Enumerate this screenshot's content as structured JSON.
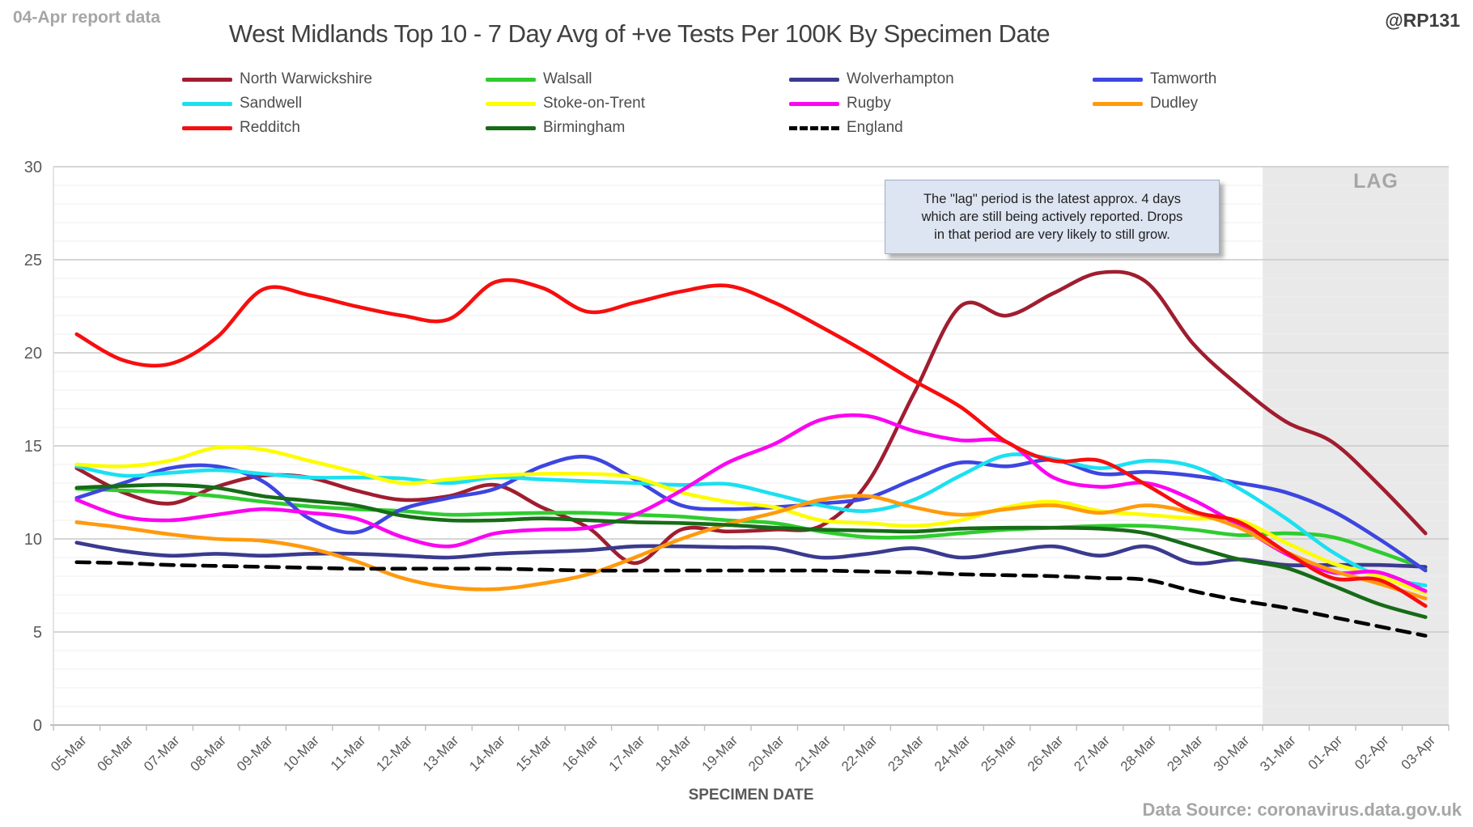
{
  "header": {
    "report_label": "04-Apr report data",
    "title": "West Midlands Top 10 - 7 Day Avg of +ve Tests Per 100K By Specimen Date",
    "handle": "@RP131"
  },
  "annotation": {
    "line1": "The \"lag\" period is the latest approx. 4 days",
    "line2": "which are still being actively reported.  Drops",
    "line3": "in that period are very likely to still grow."
  },
  "footer": {
    "source": "Data Source: coronavirus.data.gov.uk"
  },
  "chart_data": {
    "type": "line",
    "title": "West Midlands Top 10 - 7 Day Avg of +ve Tests Per 100K By Specimen Date",
    "xlabel": "SPECIMEN DATE",
    "ylabel": "",
    "ylim": [
      0,
      30
    ],
    "y_ticks": [
      0,
      5,
      10,
      15,
      20,
      25,
      30
    ],
    "grid": "horizontal, minor every 1 unit, major every 5 units",
    "legend_position": "top",
    "lag_region": {
      "label": "LAG",
      "from_category": "31-Mar",
      "note": "shaded band covering last ~3.5 categories"
    },
    "categories": [
      "05-Mar",
      "06-Mar",
      "07-Mar",
      "08-Mar",
      "09-Mar",
      "10-Mar",
      "11-Mar",
      "12-Mar",
      "13-Mar",
      "14-Mar",
      "15-Mar",
      "16-Mar",
      "17-Mar",
      "18-Mar",
      "19-Mar",
      "20-Mar",
      "21-Mar",
      "22-Mar",
      "23-Mar",
      "24-Mar",
      "25-Mar",
      "26-Mar",
      "27-Mar",
      "28-Mar",
      "29-Mar",
      "30-Mar",
      "31-Mar",
      "01-Apr",
      "02-Apr",
      "03-Apr"
    ],
    "series": [
      {
        "name": "North Warwickshire",
        "color": "#a01d30",
        "dashed": false,
        "values": [
          13.8,
          12.5,
          11.9,
          12.8,
          13.4,
          13.3,
          12.6,
          12.1,
          12.3,
          12.9,
          11.7,
          10.6,
          8.7,
          10.5,
          10.4,
          10.5,
          10.7,
          13.0,
          17.8,
          22.5,
          22.0,
          23.2,
          24.3,
          23.8,
          20.5,
          18.2,
          16.3,
          15.2,
          12.9,
          10.3
        ]
      },
      {
        "name": "Walsall",
        "color": "#2fcc2f",
        "dashed": false,
        "values": [
          12.7,
          12.6,
          12.5,
          12.3,
          12.0,
          11.75,
          11.6,
          11.5,
          11.3,
          11.35,
          11.4,
          11.4,
          11.3,
          11.2,
          11.0,
          10.85,
          10.4,
          10.1,
          10.1,
          10.3,
          10.5,
          10.6,
          10.7,
          10.7,
          10.5,
          10.2,
          10.3,
          10.1,
          9.3,
          8.4
        ]
      },
      {
        "name": "Wolverhampton",
        "color": "#3a3a8f",
        "dashed": false,
        "values": [
          9.8,
          9.35,
          9.1,
          9.2,
          9.1,
          9.2,
          9.2,
          9.1,
          9.0,
          9.2,
          9.3,
          9.4,
          9.6,
          9.6,
          9.55,
          9.5,
          9.0,
          9.2,
          9.5,
          9.0,
          9.3,
          9.6,
          9.1,
          9.6,
          8.7,
          8.9,
          8.6,
          8.6,
          8.6,
          8.5
        ]
      },
      {
        "name": "Tamworth",
        "color": "#3d46e0",
        "dashed": false,
        "values": [
          12.2,
          13.0,
          13.8,
          13.9,
          13.1,
          11.1,
          10.35,
          11.6,
          12.2,
          12.7,
          13.9,
          14.4,
          13.2,
          11.8,
          11.6,
          11.7,
          11.9,
          12.2,
          13.2,
          14.1,
          13.9,
          14.25,
          13.5,
          13.6,
          13.4,
          13.0,
          12.5,
          11.5,
          10.0,
          8.3
        ]
      },
      {
        "name": "Sandwell",
        "color": "#1ce0f0",
        "dashed": false,
        "values": [
          13.9,
          13.4,
          13.55,
          13.7,
          13.5,
          13.3,
          13.3,
          13.25,
          13.0,
          13.3,
          13.2,
          13.1,
          13.0,
          12.9,
          12.95,
          12.4,
          11.8,
          11.5,
          12.1,
          13.4,
          14.5,
          14.3,
          13.8,
          14.2,
          13.9,
          12.7,
          11.1,
          9.3,
          8.0,
          7.5
        ]
      },
      {
        "name": "Stoke-on-Trent",
        "color": "#fdfd00",
        "dashed": false,
        "values": [
          14.0,
          13.9,
          14.2,
          14.9,
          14.8,
          14.2,
          13.6,
          13.0,
          13.2,
          13.4,
          13.5,
          13.5,
          13.3,
          12.5,
          12.0,
          11.7,
          11.0,
          10.85,
          10.7,
          11.0,
          11.7,
          12.0,
          11.5,
          11.3,
          11.1,
          11.0,
          9.8,
          8.7,
          8.0,
          7.1
        ]
      },
      {
        "name": "Rugby",
        "color": "#fb06f0",
        "dashed": false,
        "values": [
          12.1,
          11.2,
          11.0,
          11.3,
          11.6,
          11.4,
          11.1,
          10.1,
          9.6,
          10.3,
          10.5,
          10.6,
          11.3,
          12.6,
          14.1,
          15.1,
          16.4,
          16.6,
          15.8,
          15.3,
          15.2,
          13.3,
          12.8,
          13.0,
          12.1,
          10.7,
          9.2,
          8.2,
          8.2,
          7.2
        ]
      },
      {
        "name": "Dudley",
        "color": "#ff9a0d",
        "dashed": false,
        "values": [
          10.9,
          10.6,
          10.25,
          10.0,
          9.9,
          9.5,
          8.8,
          7.9,
          7.4,
          7.3,
          7.6,
          8.1,
          9.0,
          10.0,
          10.8,
          11.4,
          12.1,
          12.3,
          11.7,
          11.3,
          11.6,
          11.8,
          11.4,
          11.8,
          11.4,
          10.6,
          9.3,
          8.3,
          7.6,
          6.8
        ]
      },
      {
        "name": "Redditch",
        "color": "#f70e0e",
        "dashed": false,
        "values": [
          21.0,
          19.6,
          19.4,
          20.8,
          23.4,
          23.1,
          22.5,
          22.0,
          21.8,
          23.8,
          23.5,
          22.2,
          22.7,
          23.3,
          23.6,
          22.7,
          21.4,
          20.0,
          18.5,
          17.1,
          15.2,
          14.2,
          14.2,
          12.9,
          11.5,
          10.9,
          9.3,
          7.9,
          7.8,
          6.4
        ]
      },
      {
        "name": "Birmingham",
        "color": "#176b17",
        "dashed": false,
        "values": [
          12.75,
          12.85,
          12.9,
          12.75,
          12.3,
          12.05,
          11.8,
          11.25,
          11.0,
          11.0,
          11.1,
          11.0,
          10.9,
          10.85,
          10.75,
          10.6,
          10.5,
          10.45,
          10.4,
          10.55,
          10.6,
          10.6,
          10.55,
          10.3,
          9.6,
          8.9,
          8.45,
          7.5,
          6.5,
          5.8
        ]
      },
      {
        "name": "England",
        "color": "#000000",
        "dashed": true,
        "values": [
          8.75,
          8.7,
          8.6,
          8.55,
          8.5,
          8.45,
          8.4,
          8.4,
          8.4,
          8.4,
          8.35,
          8.3,
          8.3,
          8.3,
          8.3,
          8.3,
          8.3,
          8.25,
          8.2,
          8.1,
          8.05,
          8.0,
          7.9,
          7.8,
          7.2,
          6.7,
          6.3,
          5.8,
          5.3,
          4.8
        ]
      }
    ]
  },
  "lag_label": "LAG",
  "axis_colors": {
    "tick_label": "#595959",
    "axis_line": "#bfbfbf",
    "major_grid": "#c9c9c9",
    "minor_grid": "#efefef",
    "lag_band": "#e9e9e9"
  }
}
